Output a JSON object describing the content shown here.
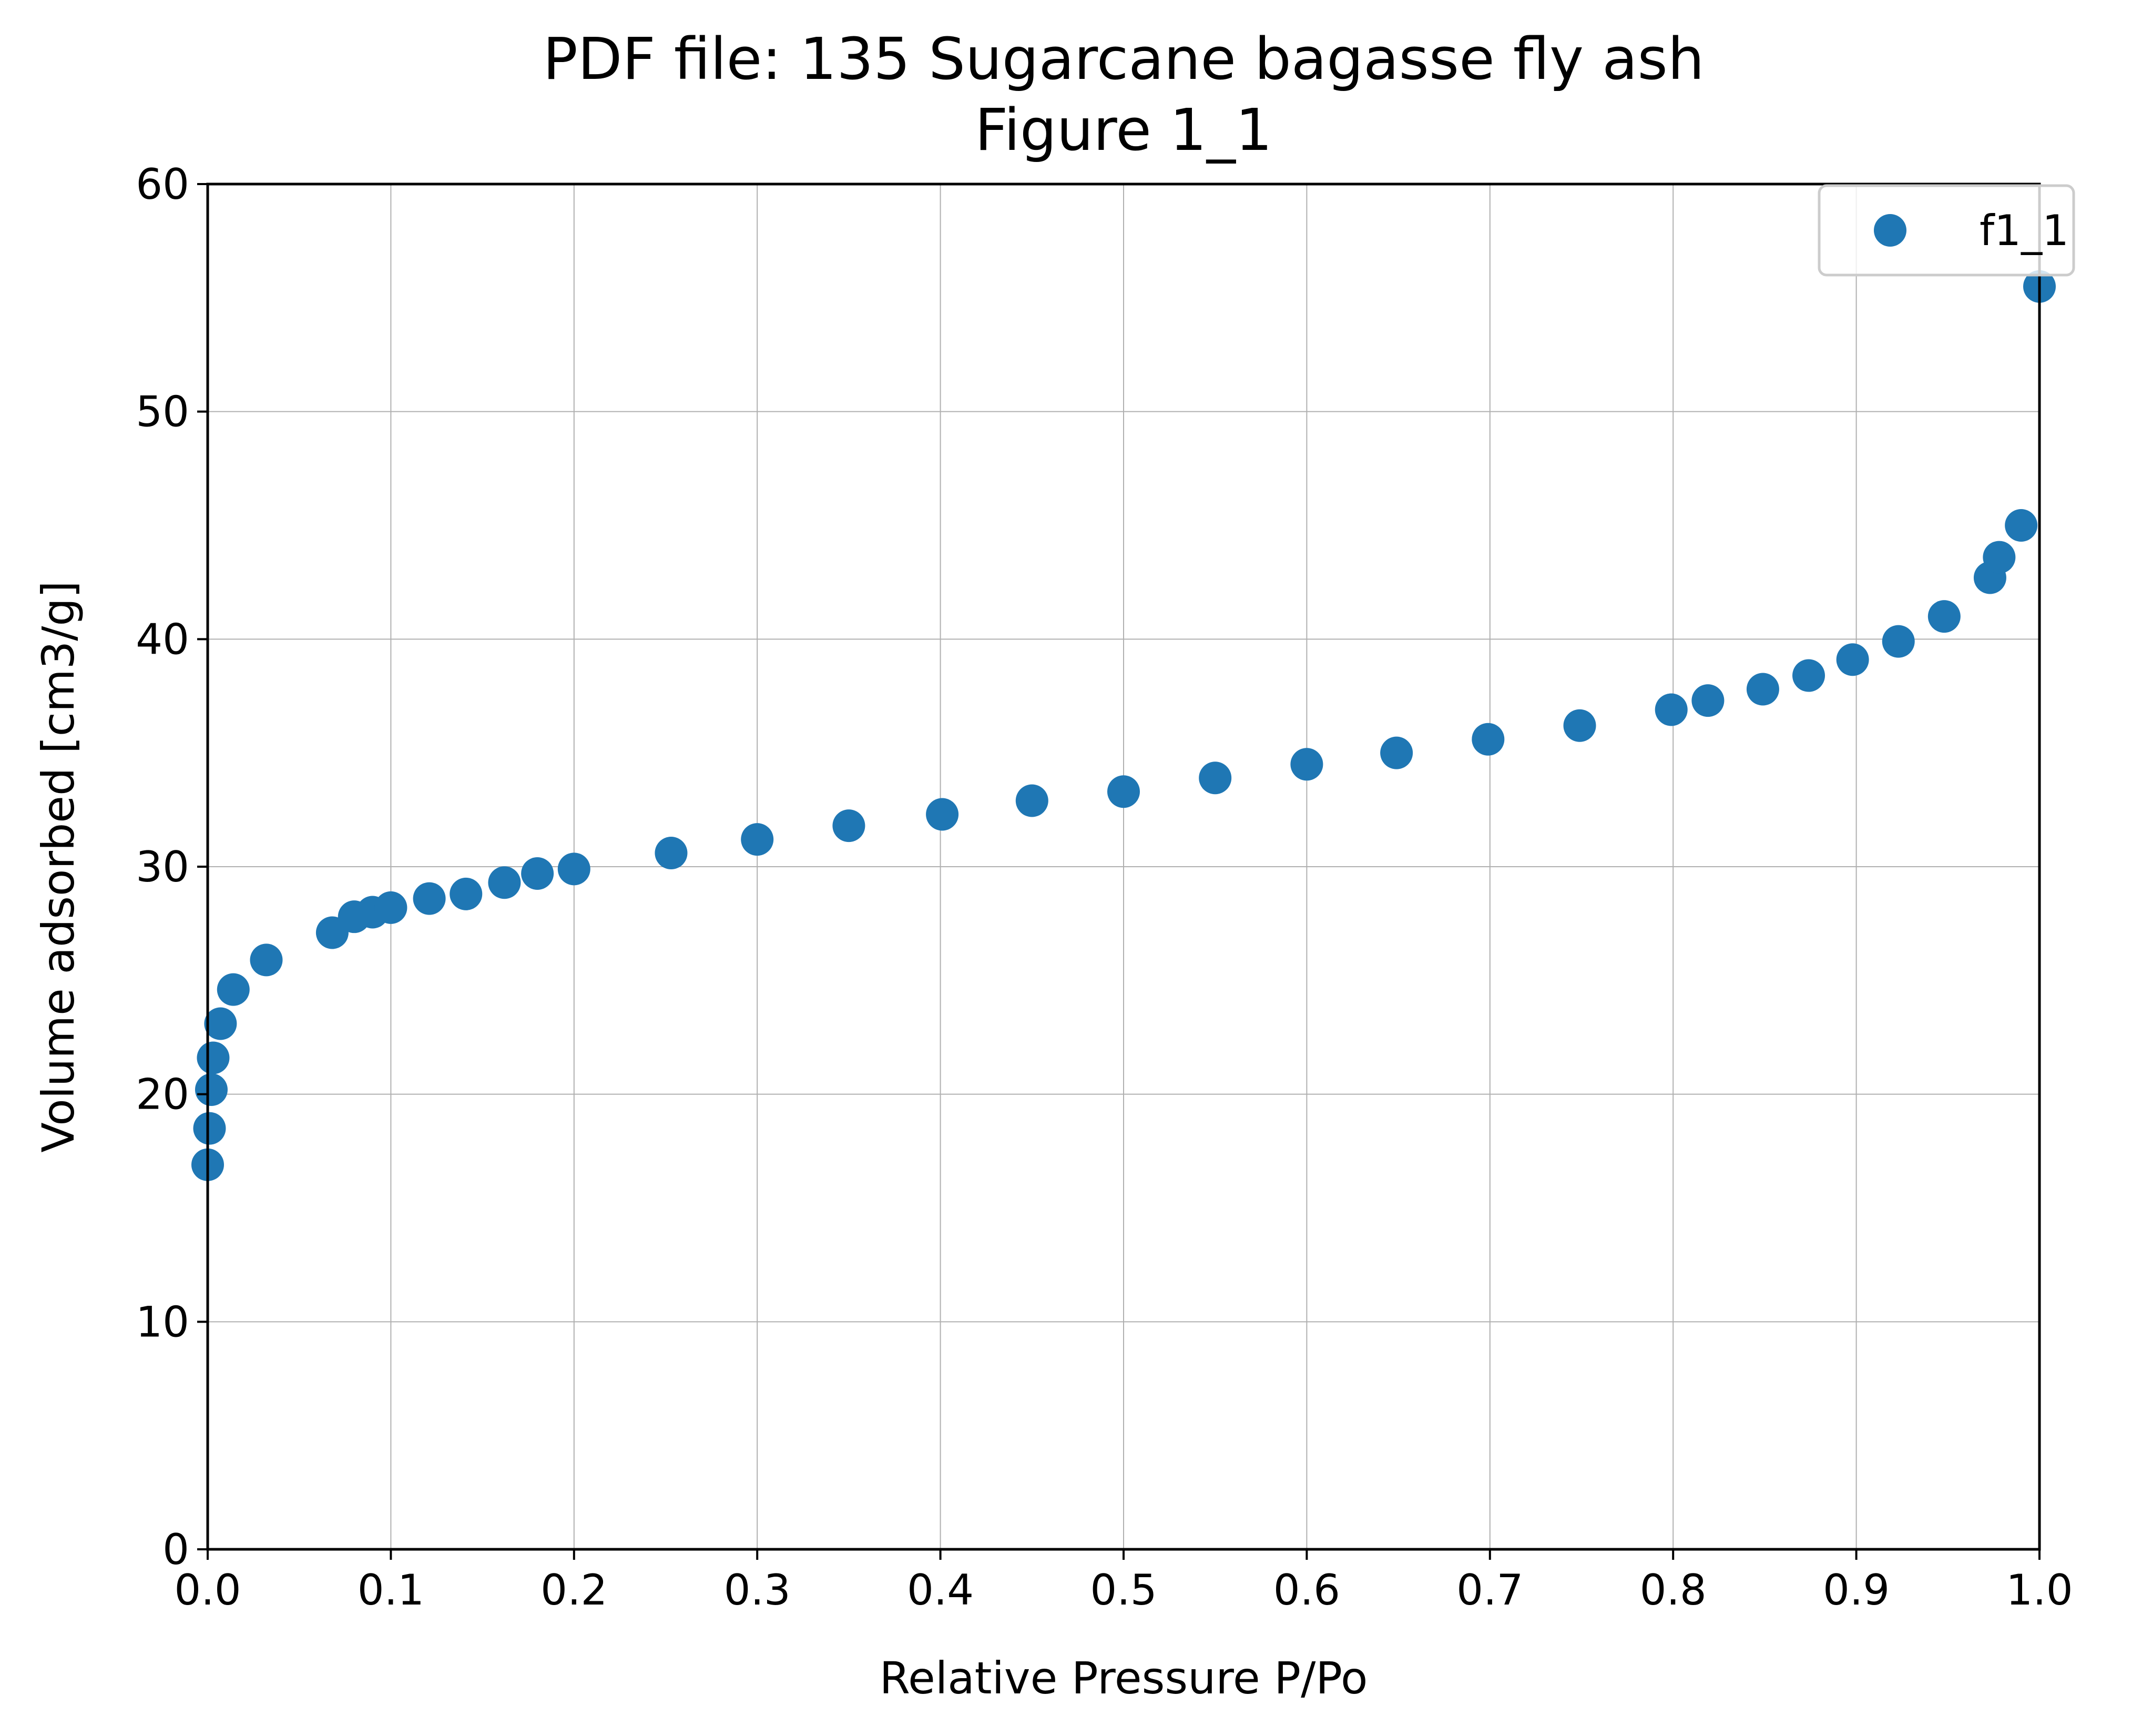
{
  "chart_data": {
    "type": "scatter",
    "title": "PDF file: 135 Sugarcane bagasse fly ash",
    "subtitle": "Figure 1_1",
    "xlabel": "Relative Pressure P/Po",
    "ylabel": "Volume adsorbed [cm3/g]",
    "xlim": [
      0.0,
      1.0
    ],
    "ylim": [
      0,
      60
    ],
    "x_ticks": [
      "0.0",
      "0.1",
      "0.2",
      "0.3",
      "0.4",
      "0.5",
      "0.6",
      "0.7",
      "0.8",
      "0.9",
      "1.0"
    ],
    "y_ticks": [
      "0",
      "10",
      "20",
      "30",
      "40",
      "50",
      "60"
    ],
    "grid": true,
    "legend_position": "top-right",
    "color": "#1f77b4",
    "series": [
      {
        "name": "f1_1",
        "x": [
          0.0,
          0.001,
          0.002,
          0.003,
          0.007,
          0.014,
          0.032,
          0.068,
          0.08,
          0.09,
          0.1,
          0.121,
          0.141,
          0.162,
          0.18,
          0.2,
          0.253,
          0.3,
          0.35,
          0.401,
          0.45,
          0.5,
          0.55,
          0.6,
          0.649,
          0.699,
          0.749,
          0.799,
          0.819,
          0.849,
          0.874,
          0.898,
          0.923,
          0.948,
          0.973,
          0.978,
          0.99,
          1.0
        ],
        "y": [
          16.9,
          18.5,
          20.2,
          21.6,
          23.1,
          24.6,
          25.9,
          27.1,
          27.8,
          28.0,
          28.2,
          28.6,
          28.8,
          29.3,
          29.7,
          29.9,
          30.6,
          31.2,
          31.8,
          32.3,
          32.9,
          33.3,
          33.9,
          34.5,
          35.0,
          35.6,
          36.2,
          36.9,
          37.3,
          37.8,
          38.4,
          39.1,
          39.9,
          41.0,
          42.7,
          43.6,
          45.0,
          55.5
        ]
      }
    ]
  }
}
